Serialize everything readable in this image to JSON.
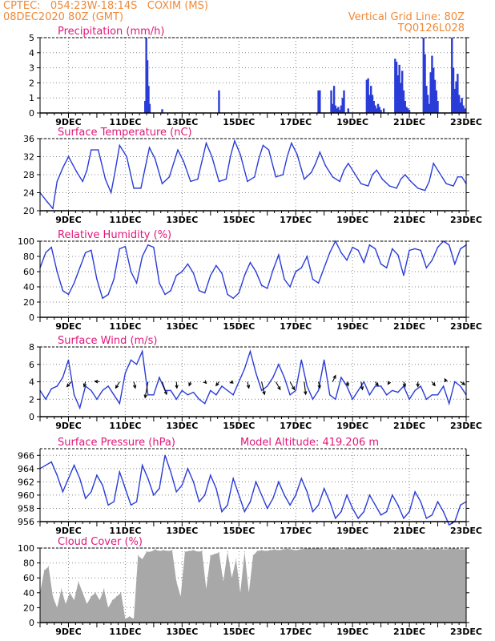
{
  "header": {
    "line1_left": "CPTEC:   054:23W-18:14S   COXIM (MS)",
    "line2_left": "08DEC2020 80Z (GMT)",
    "line1_right": "Vertical Grid Line: 80Z",
    "line2_right": "TQ0126L028",
    "color": "#ee8a3a"
  },
  "colors": {
    "title": "#e0177a",
    "series": "#2a3cd8",
    "cloud": "#a8a8a8",
    "arrow": "#000000",
    "grid": "#888888"
  },
  "x_ticks": [
    "9DEC",
    "11DEC",
    "13DEC",
    "15DEC",
    "17DEC",
    "19DEC",
    "21DEC",
    "23DEC"
  ],
  "chart_data": [
    {
      "type": "bar",
      "title": "Precipitation (mm/h)",
      "ylim": [
        0,
        5
      ],
      "yticks": [
        "0",
        "1",
        "2",
        "3",
        "4",
        "5"
      ],
      "xlim": [
        8.0,
        23.0
      ],
      "x": [
        11.7,
        11.74,
        11.78,
        11.82,
        11.86,
        12.3,
        14.3,
        17.8,
        17.85,
        18.25,
        18.3,
        18.35,
        18.4,
        18.45,
        18.5,
        18.55,
        18.6,
        18.65,
        18.7,
        18.85,
        19.5,
        19.55,
        19.6,
        19.65,
        19.7,
        19.75,
        19.8,
        19.85,
        19.9,
        19.95,
        20.0,
        20.1,
        20.5,
        20.55,
        20.6,
        20.65,
        20.7,
        20.75,
        20.8,
        20.85,
        20.9,
        20.95,
        21.0,
        21.5,
        21.55,
        21.6,
        21.65,
        21.7,
        21.75,
        21.8,
        21.85,
        21.9,
        21.95,
        22.0,
        22.5,
        22.55,
        22.6,
        22.65,
        22.7,
        22.75,
        22.8,
        22.85,
        22.9,
        22.95
      ],
      "values": [
        0.8,
        5.0,
        3.5,
        1.8,
        0.6,
        0.25,
        1.5,
        1.5,
        1.5,
        1.5,
        0.6,
        1.8,
        0.5,
        0.3,
        0.4,
        0.2,
        0.5,
        1.0,
        1.5,
        0.3,
        2.2,
        2.3,
        1.2,
        1.8,
        1.2,
        0.8,
        0.5,
        0.3,
        0.6,
        0.4,
        0.2,
        0.3,
        3.6,
        3.4,
        2.5,
        3.2,
        2.0,
        2.8,
        1.5,
        0.8,
        0.4,
        0.3,
        0.2,
        5.0,
        3.9,
        1.8,
        1.2,
        0.6,
        2.7,
        3.8,
        3.0,
        2.2,
        1.5,
        0.8,
        5.0,
        3.0,
        1.6,
        2.1,
        2.6,
        1.2,
        0.7,
        1.0,
        0.5,
        0.3
      ]
    },
    {
      "type": "line",
      "title": "Surface Temperature (nC)",
      "ylim": [
        20,
        36
      ],
      "yticks": [
        "20",
        "24",
        "28",
        "32",
        "36"
      ],
      "xlim": [
        8.0,
        23.0
      ],
      "x": [
        8.0,
        8.25,
        8.45,
        8.6,
        8.8,
        9.0,
        9.3,
        9.5,
        9.65,
        9.8,
        10.05,
        10.3,
        10.5,
        10.65,
        10.8,
        11.05,
        11.3,
        11.55,
        11.7,
        11.85,
        12.05,
        12.3,
        12.55,
        12.7,
        12.85,
        13.05,
        13.3,
        13.55,
        13.7,
        13.85,
        14.05,
        14.3,
        14.55,
        14.7,
        14.85,
        15.05,
        15.3,
        15.55,
        15.7,
        15.85,
        16.05,
        16.3,
        16.55,
        16.7,
        16.85,
        17.05,
        17.3,
        17.55,
        17.7,
        17.85,
        18.05,
        18.3,
        18.55,
        18.7,
        18.85,
        19.05,
        19.3,
        19.55,
        19.7,
        19.85,
        20.05,
        20.3,
        20.55,
        20.7,
        20.85,
        21.05,
        21.3,
        21.55,
        21.7,
        21.85,
        22.05,
        22.3,
        22.55,
        22.7,
        22.85,
        23.0
      ],
      "values": [
        24.0,
        22.0,
        20.5,
        26.5,
        29.5,
        32.0,
        28.5,
        26.5,
        29.0,
        33.5,
        33.5,
        27.0,
        24.0,
        29.0,
        34.5,
        32.0,
        25.0,
        25.0,
        29.5,
        34.0,
        31.5,
        26.0,
        27.5,
        30.5,
        33.5,
        31.0,
        26.5,
        27.0,
        31.0,
        35.0,
        32.0,
        26.5,
        27.0,
        32.0,
        35.5,
        32.5,
        26.5,
        27.5,
        31.5,
        34.5,
        33.5,
        27.5,
        28.0,
        32.0,
        35.0,
        32.5,
        27.0,
        28.5,
        30.5,
        33.0,
        30.0,
        27.5,
        26.5,
        29.0,
        30.5,
        28.5,
        26.0,
        25.5,
        28.0,
        29.0,
        27.0,
        25.5,
        25.0,
        27.0,
        28.0,
        26.5,
        25.0,
        24.5,
        26.5,
        30.5,
        28.5,
        26.0,
        25.5,
        27.5,
        27.5,
        26.0
      ]
    },
    {
      "type": "line",
      "title": "Relative Humidity (%)",
      "ylim": [
        0,
        100
      ],
      "yticks": [
        "0",
        "20",
        "40",
        "60",
        "80",
        "100"
      ],
      "xlim": [
        8.0,
        23.0
      ],
      "x": [
        8.0,
        8.2,
        8.4,
        8.6,
        8.8,
        9.0,
        9.2,
        9.4,
        9.6,
        9.8,
        10.0,
        10.2,
        10.4,
        10.6,
        10.8,
        11.0,
        11.2,
        11.4,
        11.6,
        11.8,
        12.0,
        12.2,
        12.4,
        12.6,
        12.8,
        13.0,
        13.2,
        13.4,
        13.6,
        13.8,
        14.0,
        14.2,
        14.4,
        14.6,
        14.8,
        15.0,
        15.2,
        15.4,
        15.6,
        15.8,
        16.0,
        16.2,
        16.4,
        16.6,
        16.8,
        17.0,
        17.2,
        17.4,
        17.6,
        17.8,
        18.0,
        18.2,
        18.4,
        18.6,
        18.8,
        19.0,
        19.2,
        19.4,
        19.6,
        19.8,
        20.0,
        20.2,
        20.4,
        20.6,
        20.8,
        21.0,
        21.2,
        21.4,
        21.6,
        21.8,
        22.0,
        22.2,
        22.4,
        22.6,
        22.8,
        23.0
      ],
      "values": [
        65,
        85,
        92,
        60,
        35,
        30,
        45,
        65,
        85,
        88,
        50,
        25,
        30,
        50,
        90,
        93,
        60,
        45,
        80,
        95,
        92,
        45,
        30,
        35,
        55,
        60,
        70,
        58,
        35,
        32,
        55,
        68,
        58,
        30,
        25,
        32,
        55,
        72,
        60,
        42,
        38,
        62,
        82,
        50,
        40,
        60,
        65,
        80,
        50,
        45,
        65,
        85,
        100,
        85,
        75,
        92,
        88,
        72,
        95,
        90,
        70,
        65,
        90,
        82,
        55,
        88,
        90,
        88,
        65,
        75,
        92,
        100,
        95,
        70,
        90,
        95
      ]
    },
    {
      "type": "line",
      "title": "Surface Wind (m/s)",
      "ylim": [
        0,
        8
      ],
      "yticks": [
        "0",
        "2",
        "4",
        "6",
        "8"
      ],
      "xlim": [
        8.0,
        23.0
      ],
      "x": [
        8.0,
        8.2,
        8.4,
        8.6,
        8.8,
        9.0,
        9.2,
        9.4,
        9.6,
        9.8,
        10.0,
        10.2,
        10.4,
        10.6,
        10.8,
        11.0,
        11.2,
        11.4,
        11.6,
        11.8,
        12.0,
        12.2,
        12.4,
        12.6,
        12.8,
        13.0,
        13.2,
        13.4,
        13.6,
        13.8,
        14.0,
        14.2,
        14.4,
        14.6,
        14.8,
        15.0,
        15.2,
        15.4,
        15.6,
        15.8,
        16.0,
        16.2,
        16.4,
        16.6,
        16.8,
        17.0,
        17.2,
        17.4,
        17.6,
        17.8,
        18.0,
        18.2,
        18.4,
        18.6,
        18.8,
        19.0,
        19.2,
        19.4,
        19.6,
        19.8,
        20.0,
        20.2,
        20.4,
        20.6,
        20.8,
        21.0,
        21.2,
        21.4,
        21.6,
        21.8,
        22.0,
        22.2,
        22.4,
        22.6,
        22.8,
        23.0
      ],
      "values": [
        3.0,
        2.0,
        3.2,
        3.5,
        4.5,
        6.5,
        2.5,
        1.0,
        3.5,
        3.0,
        2.0,
        3.0,
        3.5,
        2.5,
        1.5,
        5.0,
        6.5,
        6.0,
        7.5,
        2.5,
        2.5,
        4.5,
        3.0,
        3.0,
        2.0,
        3.0,
        2.5,
        2.8,
        2.0,
        1.5,
        3.0,
        2.5,
        3.5,
        3.0,
        2.5,
        4.0,
        5.5,
        7.5,
        5.0,
        3.0,
        3.5,
        4.5,
        6.0,
        4.5,
        2.5,
        3.0,
        6.5,
        3.5,
        2.0,
        3.0,
        6.5,
        2.5,
        2.0,
        4.5,
        3.5,
        2.0,
        3.0,
        4.0,
        2.5,
        3.5,
        3.5,
        2.5,
        3.0,
        2.8,
        3.5,
        2.0,
        3.0,
        3.5,
        2.0,
        2.5,
        2.5,
        3.5,
        1.5,
        4.0,
        3.5,
        2.5
      ],
      "arrows": [
        {
          "x": 9.1,
          "u": -0.9,
          "v": -1.0
        },
        {
          "x": 9.6,
          "u": -0.3,
          "v": -1.0
        },
        {
          "x": 10.1,
          "u": -1.0,
          "v": 0.1
        },
        {
          "x": 10.8,
          "u": -0.8,
          "v": -1.3
        },
        {
          "x": 11.3,
          "u": 0.3,
          "v": -1.3
        },
        {
          "x": 11.8,
          "u": -0.6,
          "v": -3.3
        },
        {
          "x": 12.3,
          "u": 0.9,
          "v": -2.6
        },
        {
          "x": 12.8,
          "u": 0.1,
          "v": -1.3
        },
        {
          "x": 13.3,
          "u": -0.3,
          "v": -0.8
        },
        {
          "x": 13.8,
          "u": 0.3,
          "v": -0.3
        },
        {
          "x": 14.3,
          "u": -0.6,
          "v": -0.8
        },
        {
          "x": 14.8,
          "u": -0.6,
          "v": -0.2
        },
        {
          "x": 15.3,
          "u": 0.3,
          "v": -1.3
        },
        {
          "x": 15.8,
          "u": 0.6,
          "v": -2.6
        },
        {
          "x": 16.3,
          "u": 0.9,
          "v": -1.6
        },
        {
          "x": 16.8,
          "u": 0.9,
          "v": -1.6
        },
        {
          "x": 17.3,
          "u": 0.3,
          "v": -2.6
        },
        {
          "x": 17.8,
          "u": 0.3,
          "v": -1.3
        },
        {
          "x": 18.3,
          "u": 0.6,
          "v": 1.3
        },
        {
          "x": 18.8,
          "u": 0.3,
          "v": -0.8
        },
        {
          "x": 19.3,
          "u": 0.3,
          "v": -1.6
        },
        {
          "x": 19.8,
          "u": 0.6,
          "v": -0.8
        },
        {
          "x": 20.3,
          "u": -0.3,
          "v": -0.5
        },
        {
          "x": 20.8,
          "u": 0.3,
          "v": -1.0
        },
        {
          "x": 21.3,
          "u": 0.0,
          "v": -1.0
        },
        {
          "x": 21.8,
          "u": 0.6,
          "v": -0.8
        },
        {
          "x": 22.3,
          "u": -0.3,
          "v": 0.6
        },
        {
          "x": 22.8,
          "u": 0.9,
          "v": -0.6
        }
      ]
    },
    {
      "type": "line",
      "title": "Surface Pressure (hPa)",
      "annotation": "Model Altitude: 419.206 m",
      "ylim": [
        956,
        967
      ],
      "yticks": [
        "956",
        "958",
        "960",
        "962",
        "964",
        "966"
      ],
      "xlim": [
        8.0,
        23.0
      ],
      "x": [
        8.0,
        8.2,
        8.4,
        8.6,
        8.8,
        9.0,
        9.2,
        9.4,
        9.6,
        9.8,
        10.0,
        10.2,
        10.4,
        10.6,
        10.8,
        11.0,
        11.2,
        11.4,
        11.6,
        11.8,
        12.0,
        12.2,
        12.4,
        12.6,
        12.8,
        13.0,
        13.2,
        13.4,
        13.6,
        13.8,
        14.0,
        14.2,
        14.4,
        14.6,
        14.8,
        15.0,
        15.2,
        15.4,
        15.6,
        15.8,
        16.0,
        16.2,
        16.4,
        16.6,
        16.8,
        17.0,
        17.2,
        17.4,
        17.6,
        17.8,
        18.0,
        18.2,
        18.4,
        18.6,
        18.8,
        19.0,
        19.2,
        19.4,
        19.6,
        19.8,
        20.0,
        20.2,
        20.4,
        20.6,
        20.8,
        21.0,
        21.2,
        21.4,
        21.6,
        21.8,
        22.0,
        22.2,
        22.4,
        22.6,
        22.8,
        23.0
      ],
      "values": [
        964.0,
        964.5,
        965.0,
        963.0,
        960.5,
        962.5,
        964.5,
        962.5,
        959.5,
        960.5,
        963.0,
        961.5,
        958.5,
        959.0,
        963.5,
        961.0,
        958.5,
        959.0,
        964.5,
        962.5,
        960.0,
        961.0,
        966.0,
        963.5,
        960.5,
        961.5,
        964.0,
        962.0,
        959.0,
        960.0,
        963.0,
        961.0,
        957.5,
        958.5,
        962.5,
        960.0,
        957.5,
        959.0,
        962.0,
        960.0,
        958.0,
        959.5,
        962.0,
        960.0,
        958.5,
        960.0,
        962.5,
        960.5,
        957.5,
        958.5,
        961.0,
        959.0,
        956.5,
        957.5,
        960.0,
        958.0,
        956.5,
        957.5,
        960.0,
        958.5,
        957.0,
        957.5,
        960.0,
        958.5,
        956.5,
        957.5,
        960.5,
        959.0,
        956.5,
        957.0,
        959.0,
        957.5,
        955.5,
        956.0,
        958.5,
        959.0
      ]
    },
    {
      "type": "area",
      "title": "Cloud Cover (%)",
      "ylim": [
        0,
        100
      ],
      "yticks": [
        "0",
        "20",
        "40",
        "60",
        "80",
        "100"
      ],
      "xlim": [
        8.0,
        23.0
      ],
      "x": [
        8.0,
        8.15,
        8.3,
        8.45,
        8.6,
        8.75,
        8.9,
        9.05,
        9.2,
        9.35,
        9.5,
        9.65,
        9.8,
        9.95,
        10.1,
        10.25,
        10.4,
        10.55,
        10.7,
        10.85,
        11.0,
        11.15,
        11.3,
        11.45,
        11.6,
        11.75,
        11.9,
        12.05,
        12.2,
        12.35,
        12.5,
        12.65,
        12.8,
        12.95,
        13.1,
        13.25,
        13.4,
        13.55,
        13.7,
        13.85,
        14.0,
        14.15,
        14.3,
        14.45,
        14.6,
        14.75,
        14.9,
        15.05,
        15.2,
        15.35,
        15.5,
        15.65,
        15.8,
        15.95,
        16.1,
        16.25,
        16.4,
        16.55,
        16.7,
        16.85,
        17.0,
        17.15,
        17.3,
        17.45,
        17.6,
        17.75,
        17.9,
        18.05,
        18.2,
        18.35,
        18.5,
        18.65,
        18.8,
        18.95,
        19.1,
        19.25,
        19.4,
        19.55,
        19.7,
        19.85,
        20.0,
        20.15,
        20.3,
        20.45,
        20.6,
        20.75,
        20.9,
        21.05,
        21.2,
        21.35,
        21.5,
        21.65,
        21.8,
        21.95,
        22.1,
        22.25,
        22.4,
        22.55,
        22.7,
        22.85,
        23.0
      ],
      "values": [
        40,
        70,
        75,
        35,
        20,
        45,
        25,
        40,
        30,
        55,
        40,
        25,
        35,
        40,
        30,
        45,
        20,
        30,
        35,
        40,
        5,
        8,
        5,
        90,
        85,
        95,
        95,
        98,
        96,
        97,
        96,
        97,
        55,
        35,
        95,
        96,
        97,
        95,
        96,
        45,
        90,
        92,
        94,
        55,
        95,
        60,
        85,
        40,
        95,
        40,
        90,
        96,
        97,
        96,
        97,
        98,
        97,
        98,
        99,
        98,
        97,
        98,
        99,
        100,
        99,
        100,
        99,
        98,
        99,
        100,
        99,
        98,
        99,
        100,
        99,
        100,
        99,
        98,
        99,
        100,
        99,
        100,
        99,
        98,
        99,
        100,
        99,
        98,
        99,
        100,
        99,
        98,
        99,
        100,
        99,
        98,
        99,
        100,
        99,
        98,
        99
      ]
    }
  ]
}
